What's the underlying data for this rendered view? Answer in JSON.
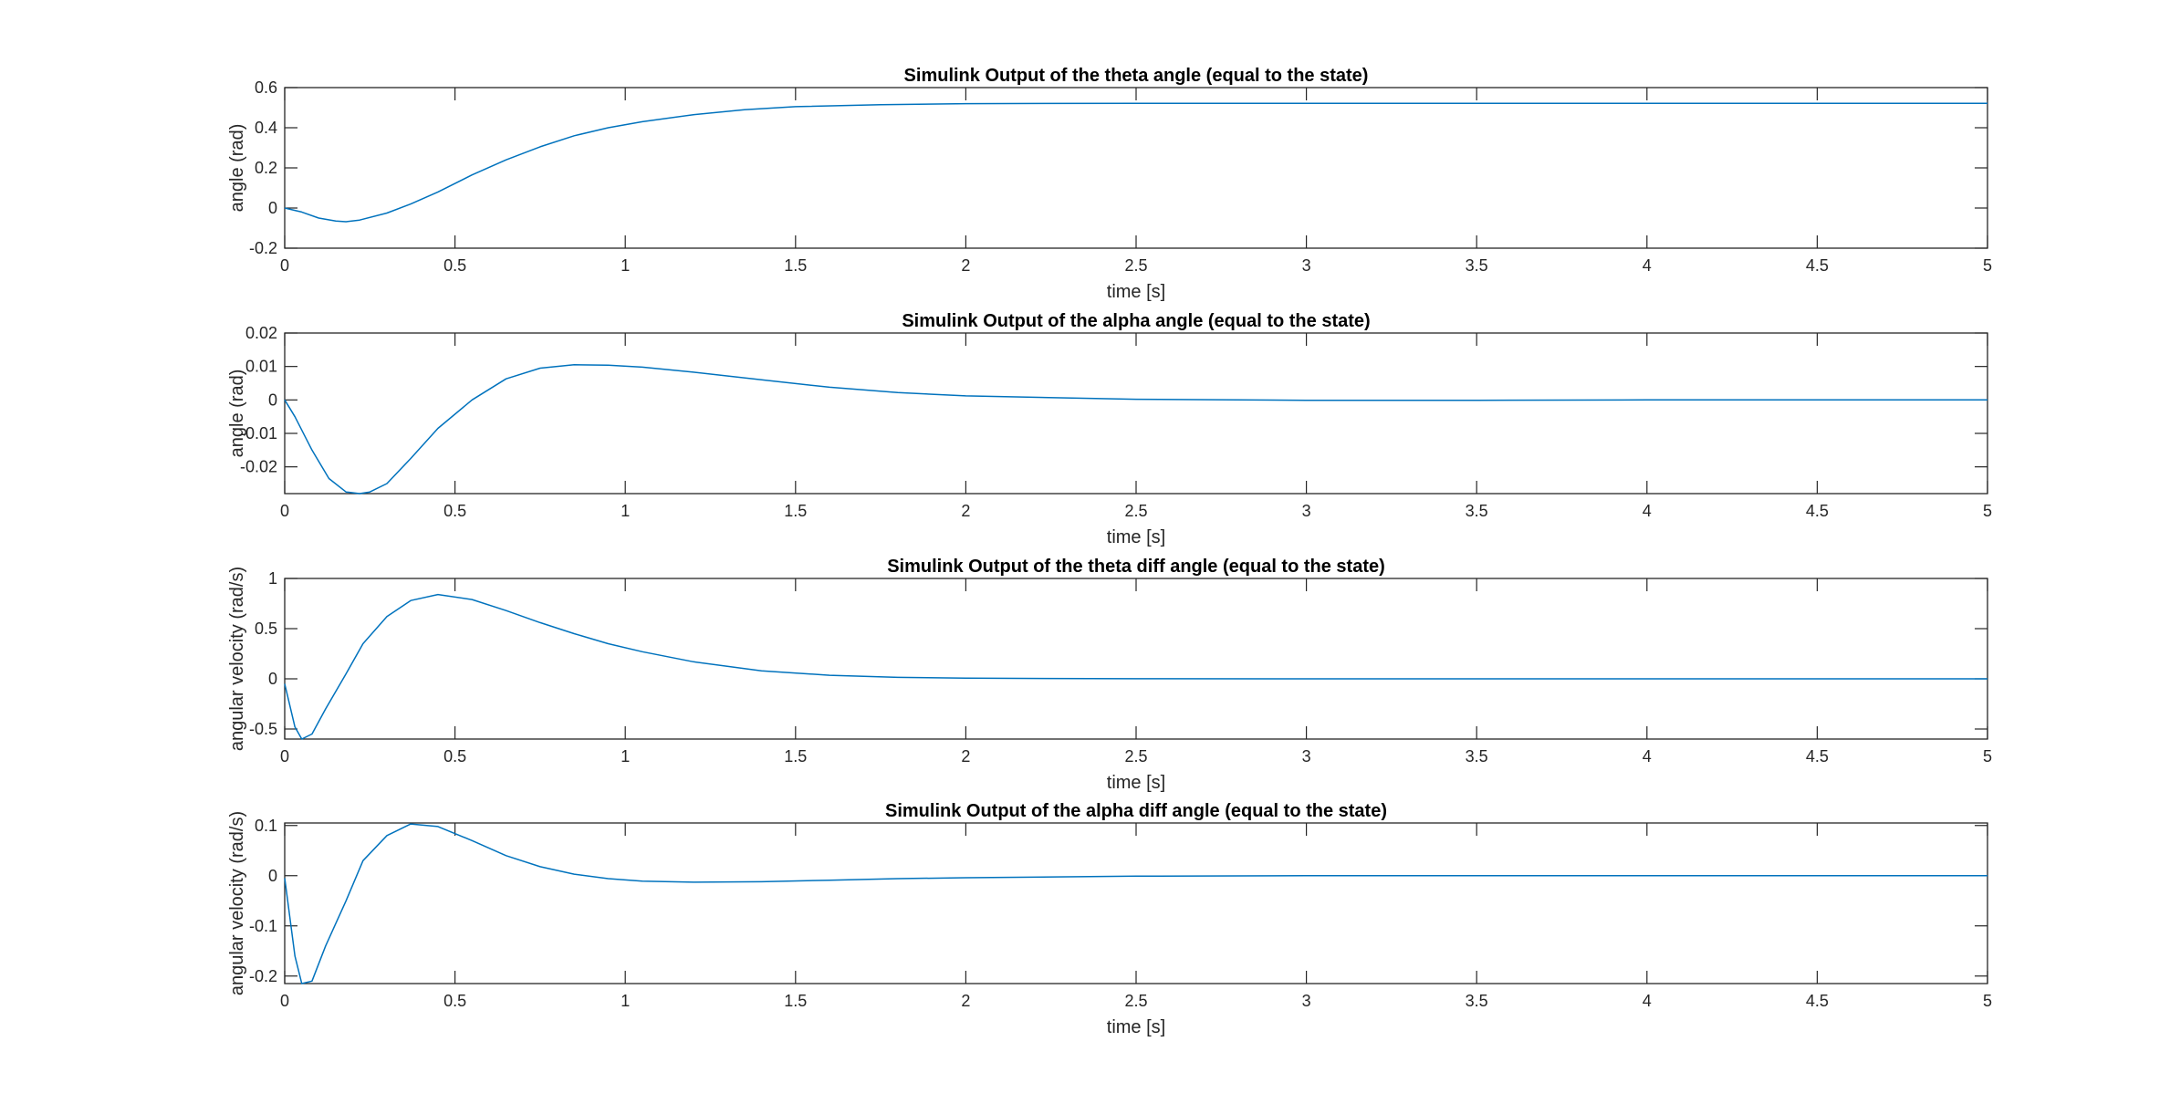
{
  "figure": {
    "background": "#ffffff",
    "line_color": "#0072bd",
    "axis_color": "#262626"
  },
  "chart_data": [
    {
      "type": "line",
      "title": "Simulink Output of the theta angle (equal to the state)",
      "xlabel": "time [s]",
      "ylabel": "angle (rad)",
      "xlim": [
        0,
        5
      ],
      "ylim": [
        -0.2,
        0.6
      ],
      "xticks": [
        0,
        0.5,
        1,
        1.5,
        2,
        2.5,
        3,
        3.5,
        4,
        4.5,
        5
      ],
      "yticks": [
        -0.2,
        0,
        0.2,
        0.4,
        0.6
      ],
      "xtick_labels": [
        "0",
        "0.5",
        "1",
        "1.5",
        "2",
        "2.5",
        "3",
        "3.5",
        "4",
        "4.5",
        "5"
      ],
      "ytick_labels": [
        "-0.2",
        "0",
        "0.2",
        "0.4",
        "0.6"
      ],
      "grid": false,
      "series": [
        {
          "color": "#0072bd",
          "x": [
            0,
            0.05,
            0.1,
            0.15,
            0.18,
            0.22,
            0.3,
            0.37,
            0.45,
            0.55,
            0.65,
            0.75,
            0.85,
            0.95,
            1.05,
            1.2,
            1.35,
            1.5,
            1.75,
            2.0,
            2.5,
            3.0,
            3.5,
            4.0,
            4.5,
            5.0
          ],
          "y": [
            0,
            -0.02,
            -0.05,
            -0.065,
            -0.068,
            -0.06,
            -0.025,
            0.02,
            0.08,
            0.165,
            0.24,
            0.305,
            0.36,
            0.4,
            0.43,
            0.465,
            0.49,
            0.505,
            0.515,
            0.52,
            0.522,
            0.522,
            0.522,
            0.522,
            0.522,
            0.522
          ]
        }
      ]
    },
    {
      "type": "line",
      "title": "Simulink Output of the alpha angle (equal to the state)",
      "xlabel": "time [s]",
      "ylabel": "angle (rad)",
      "xlim": [
        0,
        5
      ],
      "ylim": [
        -0.028,
        0.02
      ],
      "xticks": [
        0,
        0.5,
        1,
        1.5,
        2,
        2.5,
        3,
        3.5,
        4,
        4.5,
        5
      ],
      "yticks": [
        -0.02,
        -0.01,
        0,
        0.01,
        0.02
      ],
      "xtick_labels": [
        "0",
        "0.5",
        "1",
        "1.5",
        "2",
        "2.5",
        "3",
        "3.5",
        "4",
        "4.5",
        "5"
      ],
      "ytick_labels": [
        "-0.02",
        "-0.01",
        "0",
        "0.01",
        "0.02"
      ],
      "grid": false,
      "series": [
        {
          "color": "#0072bd",
          "x": [
            0,
            0.03,
            0.08,
            0.13,
            0.18,
            0.22,
            0.25,
            0.3,
            0.37,
            0.45,
            0.55,
            0.65,
            0.75,
            0.85,
            0.95,
            1.05,
            1.2,
            1.4,
            1.6,
            1.8,
            2.0,
            2.5,
            3.0,
            3.5,
            4.0,
            4.5,
            5.0
          ],
          "y": [
            0,
            -0.005,
            -0.015,
            -0.0235,
            -0.0275,
            -0.028,
            -0.0275,
            -0.025,
            -0.0175,
            -0.0085,
            0,
            0.0063,
            0.0095,
            0.0105,
            0.0104,
            0.0098,
            0.0083,
            0.006,
            0.0038,
            0.0022,
            0.0012,
            0.0002,
            -0.0001,
            -0.0001,
            0,
            0,
            0
          ]
        }
      ]
    },
    {
      "type": "line",
      "title": "Simulink Output of the theta diff angle (equal to the state)",
      "xlabel": "time [s]",
      "ylabel": "angular velocity (rad/s)",
      "xlim": [
        0,
        5
      ],
      "ylim": [
        -0.6,
        1
      ],
      "xticks": [
        0,
        0.5,
        1,
        1.5,
        2,
        2.5,
        3,
        3.5,
        4,
        4.5,
        5
      ],
      "yticks": [
        -0.5,
        0,
        0.5,
        1
      ],
      "xtick_labels": [
        "0",
        "0.5",
        "1",
        "1.5",
        "2",
        "2.5",
        "3",
        "3.5",
        "4",
        "4.5",
        "5"
      ],
      "ytick_labels": [
        "-0.5",
        "0",
        "0.5",
        "1"
      ],
      "grid": false,
      "series": [
        {
          "color": "#0072bd",
          "x": [
            0,
            0.03,
            0.05,
            0.08,
            0.12,
            0.18,
            0.23,
            0.3,
            0.37,
            0.45,
            0.55,
            0.65,
            0.75,
            0.85,
            0.95,
            1.05,
            1.2,
            1.4,
            1.6,
            1.8,
            2.0,
            2.5,
            3.0,
            3.5,
            4.0,
            4.5,
            5.0
          ],
          "y": [
            -0.05,
            -0.48,
            -0.6,
            -0.55,
            -0.3,
            0.05,
            0.35,
            0.62,
            0.78,
            0.84,
            0.79,
            0.68,
            0.56,
            0.45,
            0.35,
            0.27,
            0.17,
            0.08,
            0.035,
            0.015,
            0.006,
            0.001,
            0,
            0,
            0,
            0,
            0
          ]
        }
      ]
    },
    {
      "type": "line",
      "title": "Simulink Output of the alpha diff angle (equal to the state)",
      "xlabel": "time [s]",
      "ylabel": "angular velocity (rad/s)",
      "xlim": [
        0,
        5
      ],
      "ylim": [
        -0.215,
        0.105
      ],
      "xticks": [
        0,
        0.5,
        1,
        1.5,
        2,
        2.5,
        3,
        3.5,
        4,
        4.5,
        5
      ],
      "yticks": [
        -0.2,
        -0.1,
        0,
        0.1
      ],
      "xtick_labels": [
        "0",
        "0.5",
        "1",
        "1.5",
        "2",
        "2.5",
        "3",
        "3.5",
        "4",
        "4.5",
        "5"
      ],
      "ytick_labels": [
        "-0.2",
        "-0.1",
        "0",
        "0.1"
      ],
      "grid": false,
      "series": [
        {
          "color": "#0072bd",
          "x": [
            0,
            0.03,
            0.05,
            0.08,
            0.12,
            0.18,
            0.23,
            0.3,
            0.37,
            0.45,
            0.55,
            0.65,
            0.75,
            0.85,
            0.95,
            1.05,
            1.2,
            1.4,
            1.6,
            1.8,
            2.0,
            2.5,
            3.0,
            3.5,
            4.0,
            4.5,
            5.0
          ],
          "y": [
            -0.005,
            -0.16,
            -0.215,
            -0.21,
            -0.14,
            -0.05,
            0.03,
            0.08,
            0.103,
            0.098,
            0.07,
            0.04,
            0.018,
            0.003,
            -0.006,
            -0.011,
            -0.013,
            -0.012,
            -0.009,
            -0.006,
            -0.004,
            -0.001,
            0,
            0,
            0,
            0,
            0
          ]
        }
      ]
    }
  ]
}
